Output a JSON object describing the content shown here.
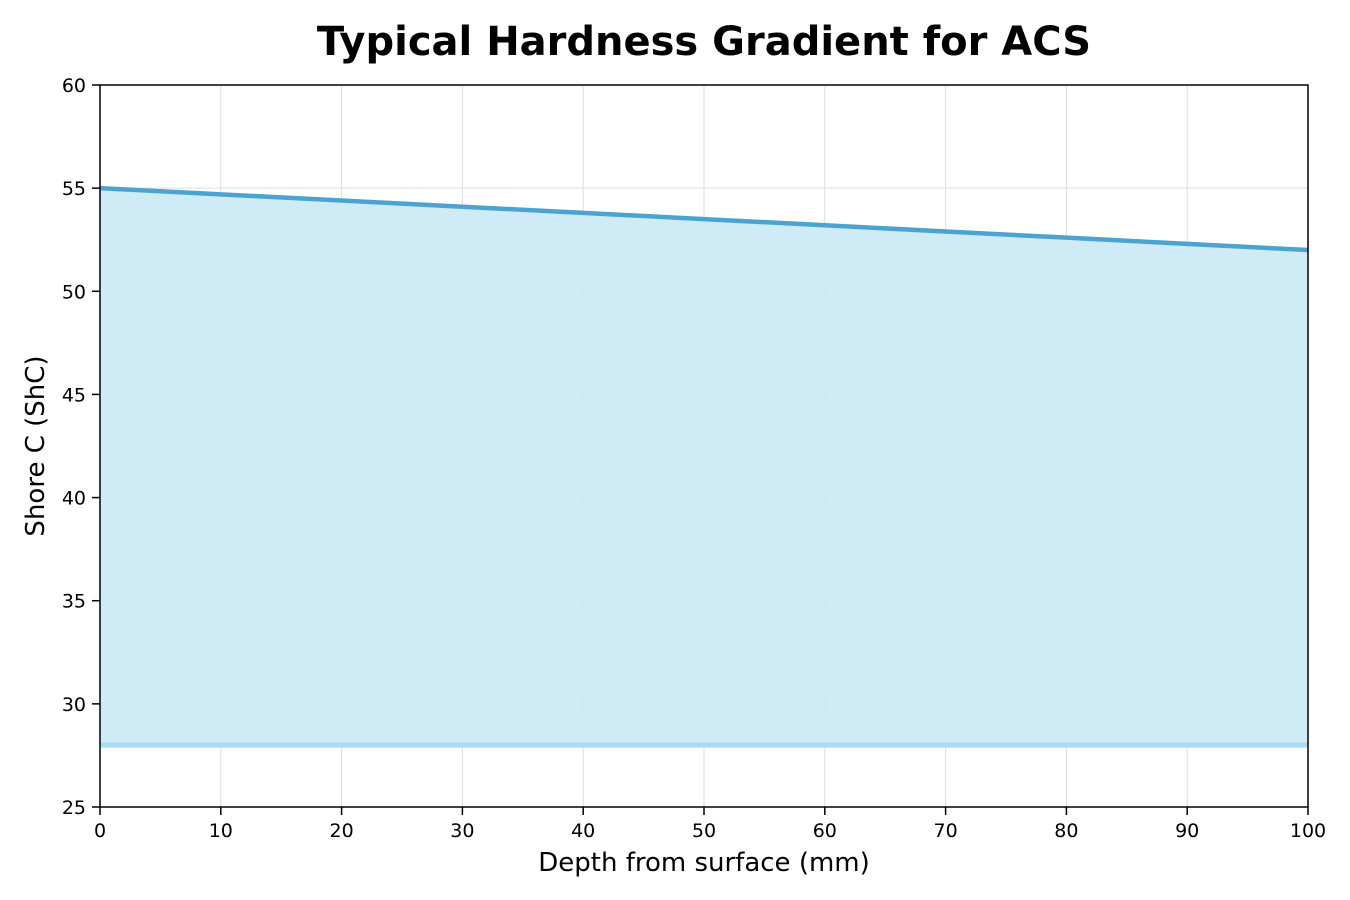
{
  "chart_data": {
    "type": "area",
    "title": "Typical Hardness Gradient for ACS",
    "xlabel": "Depth from surface (mm)",
    "ylabel": "Shore C (ShC)",
    "xlim": [
      0,
      100
    ],
    "ylim": [
      25,
      60
    ],
    "xticks": [
      0,
      10,
      20,
      30,
      40,
      50,
      60,
      70,
      80,
      90,
      100
    ],
    "yticks": [
      25,
      30,
      35,
      40,
      45,
      50,
      55,
      60
    ],
    "grid": true,
    "legend": "none",
    "series": [
      {
        "x": [
          0,
          10,
          20,
          30,
          40,
          50,
          60,
          70,
          80,
          90,
          100
        ],
        "upper": [
          55,
          54.7,
          54.4,
          54.1,
          53.8,
          53.5,
          53.2,
          52.9,
          52.6,
          52.3,
          52
        ],
        "lower": [
          28,
          28,
          28,
          28,
          28,
          28,
          28,
          28,
          28,
          28,
          28
        ]
      }
    ],
    "colors": {
      "line": "#4aa3d1",
      "fill": "#cbeaf6",
      "lower_line": "#a8dcf2",
      "grid": "#dddddd"
    }
  }
}
